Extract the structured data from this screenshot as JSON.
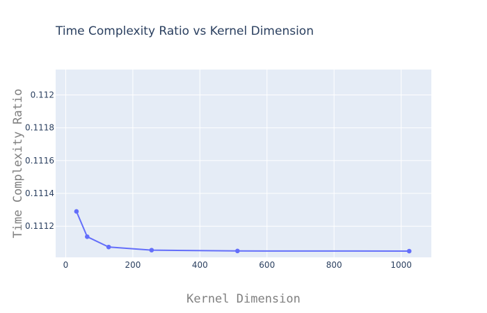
{
  "chart_data": {
    "type": "line",
    "title": "Time Complexity Ratio vs Kernel Dimension",
    "xlabel": "Kernel Dimension",
    "ylabel": "Time Complexity Ratio",
    "x": [
      32,
      64,
      128,
      256,
      512,
      1024
    ],
    "y": [
      0.11129,
      0.111136,
      0.111073,
      0.111054,
      0.111049,
      0.111048
    ],
    "xlim": [
      -30,
      1090
    ],
    "ylim": [
      0.11101,
      0.112155
    ],
    "xticks": [
      0,
      200,
      400,
      600,
      800,
      1000
    ],
    "yticks": [
      0.1112,
      0.1114,
      0.1116,
      0.1118,
      0.112
    ],
    "ytick_labels": [
      "0.1112",
      "0.1114",
      "0.1116",
      "0.1118",
      "0.112"
    ],
    "grid": true,
    "markers": true,
    "colors": {
      "line": "#636efa",
      "plot_bg": "#e5ecf6",
      "grid": "#ffffff",
      "text": "#2a3f5f",
      "axis_title": "#7f7f7f"
    }
  }
}
